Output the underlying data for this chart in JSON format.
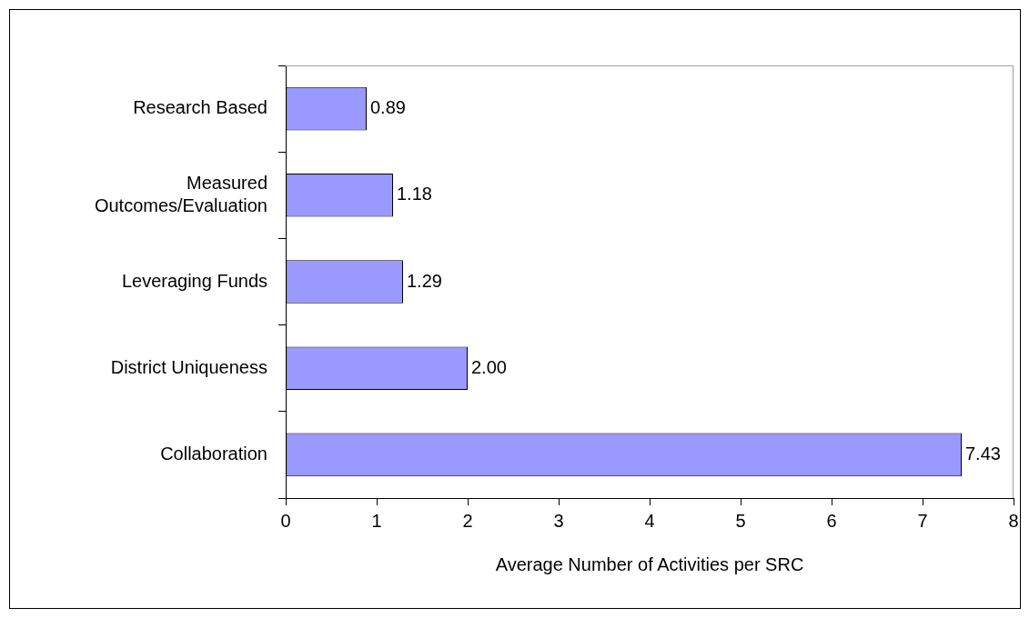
{
  "chart_data": {
    "type": "bar",
    "orientation": "horizontal",
    "xlabel": "Average Number of Activities per SRC",
    "categories": [
      "Research Based",
      "Measured Outcomes/Evaluation",
      "Leveraging Funds",
      "District Uniqueness",
      "Collaboration"
    ],
    "values": [
      0.89,
      1.18,
      1.29,
      2.0,
      7.43
    ],
    "value_labels": [
      "0.89",
      "1.18",
      "1.29",
      "2.00",
      "7.43"
    ],
    "color": "#9999ff",
    "xlim": [
      0,
      8
    ],
    "xticks": [
      0,
      1,
      2,
      3,
      4,
      5,
      6,
      7,
      8
    ],
    "grid": false,
    "legend": false
  }
}
